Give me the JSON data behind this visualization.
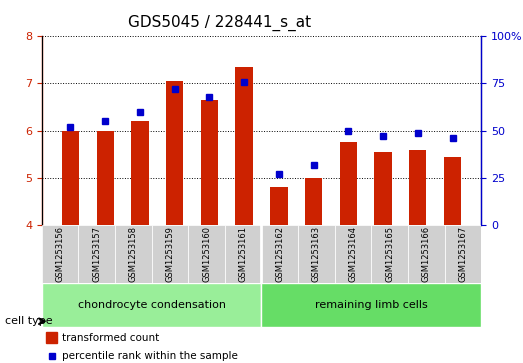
{
  "title": "GDS5045 / 228441_s_at",
  "samples": [
    "GSM1253156",
    "GSM1253157",
    "GSM1253158",
    "GSM1253159",
    "GSM1253160",
    "GSM1253161",
    "GSM1253162",
    "GSM1253163",
    "GSM1253164",
    "GSM1253165",
    "GSM1253166",
    "GSM1253167"
  ],
  "transformed_count": [
    6.0,
    6.0,
    6.2,
    7.05,
    6.65,
    7.35,
    4.8,
    5.0,
    5.75,
    5.55,
    5.6,
    5.45
  ],
  "percentile_rank": [
    52,
    55,
    60,
    72,
    68,
    76,
    27,
    32,
    50,
    47,
    49,
    46
  ],
  "bar_bottom": 4.0,
  "ylim_left": [
    4,
    8
  ],
  "ylim_right": [
    0,
    100
  ],
  "yticks_left": [
    4,
    5,
    6,
    7,
    8
  ],
  "yticks_right": [
    0,
    25,
    50,
    75,
    100
  ],
  "bar_color": "#cc2200",
  "dot_color": "#0000cc",
  "grid_color": "#000000",
  "bg_color": "#cccccc",
  "group1_label": "chondrocyte condensation",
  "group2_label": "remaining limb cells",
  "group1_bg": "#99ee99",
  "group2_bg": "#66dd66",
  "cell_type_label": "cell type",
  "legend_bar_label": "transformed count",
  "legend_dot_label": "percentile rank within the sample",
  "n_group1": 6,
  "n_group2": 6
}
